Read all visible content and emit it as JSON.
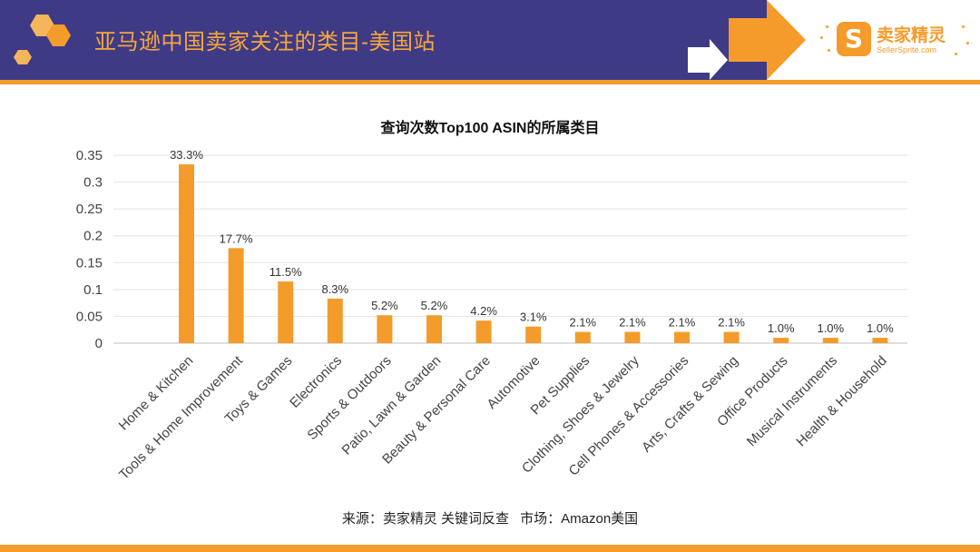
{
  "header": {
    "title": "亚马逊中国卖家关注的类目-美国站",
    "logo_mark": "S",
    "logo_name": "卖家精灵",
    "logo_sub": "SellerSprite.com"
  },
  "colors": {
    "header_band": "#3f3a86",
    "accent": "#f59b2b",
    "bar": "#f39c2b",
    "title_text": "#f6a73b"
  },
  "chart_data": {
    "type": "bar",
    "title": "查询次数Top100 ASIN的所属类目",
    "xlabel": "",
    "ylabel": "",
    "ylim": [
      0,
      0.35
    ],
    "yticks": [
      "0",
      "0.05",
      "0.1",
      "0.15",
      "0.2",
      "0.25",
      "0.3",
      "0.35"
    ],
    "categories": [
      "Home & Kitchen",
      "Tools & Home Improvement",
      "Toys & Games",
      "Electronics",
      "Sports & Outdoors",
      "Patio, Lawn & Garden",
      "Beauty & Personal Care",
      "Automotive",
      "Pet Supplies",
      "Clothing, Shoes & Jewelry",
      "Cell Phones & Accessories",
      "Arts, Crafts & Sewing",
      "Office Products",
      "Musical Instruments",
      "Health & Household"
    ],
    "values": [
      0.333,
      0.177,
      0.115,
      0.083,
      0.052,
      0.052,
      0.042,
      0.031,
      0.021,
      0.021,
      0.021,
      0.021,
      0.01,
      0.01,
      0.01
    ],
    "data_labels": [
      "33.3%",
      "17.7%",
      "11.5%",
      "8.3%",
      "5.2%",
      "5.2%",
      "4.2%",
      "3.1%",
      "2.1%",
      "2.1%",
      "2.1%",
      "2.1%",
      "1.0%",
      "1.0%",
      "1.0%"
    ],
    "grid": true,
    "legend": "none"
  },
  "source": {
    "label": "来源：卖家精灵 关键词反查",
    "market": "市场：Amazon美国"
  }
}
